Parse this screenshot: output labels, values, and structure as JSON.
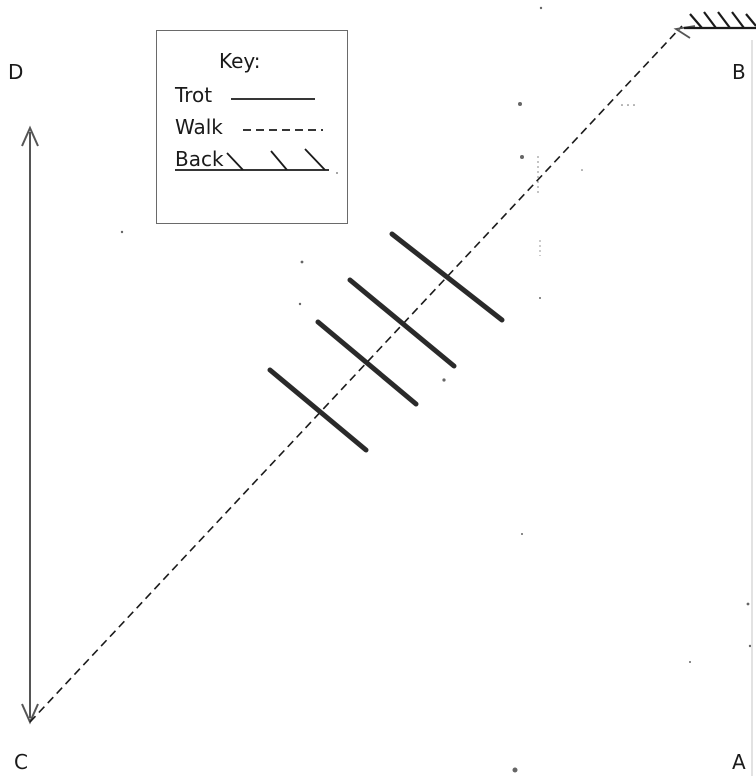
{
  "corners": {
    "a": "A",
    "b": "B",
    "c": "C",
    "d": "D"
  },
  "key": {
    "title": "Key:",
    "entries": [
      {
        "label": "Trot",
        "line_style": "solid"
      },
      {
        "label": "Walk",
        "line_style": "dashed"
      },
      {
        "label": "Back",
        "line_style": "hatched"
      }
    ]
  },
  "colors": {
    "ink": "#1a1a1a",
    "trot_strokes": "#2a2a2a",
    "arrow": "#555555",
    "box_border": "#6a6a6a"
  },
  "diagram": {
    "path_from": "C",
    "path_to": "B",
    "path_style": "dashed",
    "trot_stroke_count": 4,
    "back_marker_at": "B",
    "vertical_arrow_between": [
      "C",
      "D"
    ]
  }
}
